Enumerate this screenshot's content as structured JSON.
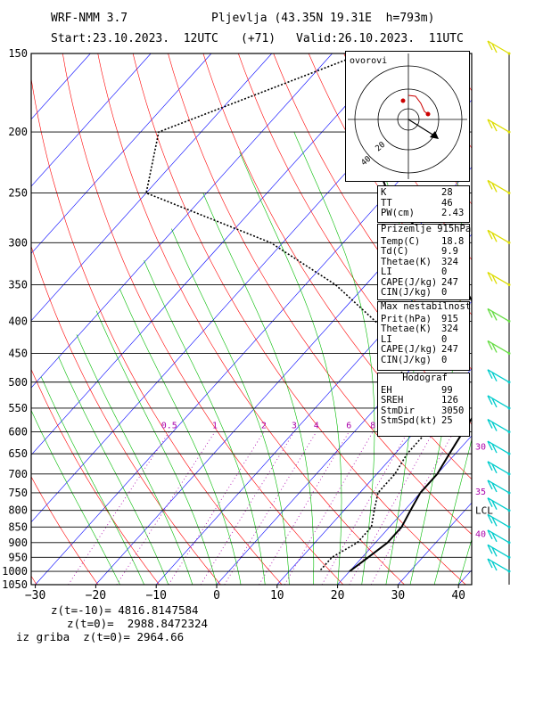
{
  "header": {
    "model": "WRF-NMM 3.7",
    "station": "Pljevlja (43.35N 19.31E  h=793m)",
    "start": "Start:23.10.2023.  12UTC",
    "lead": "(+71)",
    "valid": "Valid:26.10.2023.  11UTC"
  },
  "indices": [
    {
      "key": "K",
      "value": "28"
    },
    {
      "key": "TT",
      "value": "46"
    },
    {
      "key": "PW(cm)",
      "value": "2.43"
    }
  ],
  "surface": {
    "title": "Prizemlje 915hPa",
    "rows": [
      {
        "key": "Temp(C)",
        "value": "18.8"
      },
      {
        "key": "Td(C)",
        "value": "9.9"
      },
      {
        "key": "Thetae(K)",
        "value": "324"
      },
      {
        "key": "LI",
        "value": "0"
      },
      {
        "key": "CAPE(J/kg)",
        "value": "247"
      },
      {
        "key": "CIN(J/kg)",
        "value": "0"
      }
    ]
  },
  "maxinst": {
    "title": "Max nestabilnost",
    "rows": [
      {
        "key": "Prit(hPa)",
        "value": "915"
      },
      {
        "key": "Thetae(K)",
        "value": "324"
      },
      {
        "key": "LI",
        "value": "0"
      },
      {
        "key": "CAPE(J/kg)",
        "value": "247"
      },
      {
        "key": "CIN(J/kg)",
        "value": "0"
      }
    ]
  },
  "hodograf": {
    "title": "Hodograf",
    "rows": [
      {
        "key": "EH",
        "value": "99"
      },
      {
        "key": "SREH",
        "value": "126"
      },
      {
        "key": "StmDir",
        "value": "3050"
      },
      {
        "key": "StmSpd(kt)",
        "value": "25"
      }
    ]
  },
  "hodograph_plot": {
    "title": "ovorovi",
    "ring_labels": [
      "20",
      "40"
    ]
  },
  "footer": {
    "line1": "z(t=-10)= 4816.8147584",
    "line2": "z(t=0)=  2988.8472324",
    "line3": "iz griba  z(t=0)= 2964.66"
  },
  "chart_data": {
    "type": "skew-t",
    "x_tick_labels": [
      "-30",
      "-20",
      "-10",
      "0",
      "10",
      "20",
      "30",
      "40"
    ],
    "x_ticks": [
      -30,
      -20,
      -10,
      0,
      10,
      20,
      30,
      40
    ],
    "xlim": [
      -30,
      42
    ],
    "y_tick_labels": [
      "150",
      "200",
      "250",
      "300",
      "350",
      "400",
      "450",
      "500",
      "550",
      "600",
      "650",
      "700",
      "750",
      "800",
      "850",
      "900",
      "950",
      "1000",
      "1050"
    ],
    "y_ticks": [
      150,
      200,
      250,
      300,
      350,
      400,
      450,
      500,
      550,
      600,
      650,
      700,
      750,
      800,
      850,
      900,
      950,
      1000,
      1050
    ],
    "ylim": [
      150,
      1050
    ],
    "y_scale": "log",
    "mixing_ratio_labels": [
      "0.5",
      "1",
      "2",
      "3",
      "4",
      "6",
      "8"
    ],
    "right_labels": [
      {
        "text": "30",
        "p": 632
      },
      {
        "text": "35",
        "p": 745
      },
      {
        "text": "LCL",
        "p": 800
      },
      {
        "text": "40",
        "p": 870
      }
    ],
    "temperature": [
      {
        "p": 150,
        "t": -39
      },
      {
        "p": 200,
        "t": -43
      },
      {
        "p": 250,
        "t": -30
      },
      {
        "p": 300,
        "t": -16
      },
      {
        "p": 350,
        "t": -4
      },
      {
        "p": 400,
        "t": 5
      },
      {
        "p": 450,
        "t": 11
      },
      {
        "p": 500,
        "t": 16
      },
      {
        "p": 550,
        "t": 17
      },
      {
        "p": 600,
        "t": 18
      },
      {
        "p": 650,
        "t": 19
      },
      {
        "p": 700,
        "t": 20
      },
      {
        "p": 750,
        "t": 20
      },
      {
        "p": 800,
        "t": 21
      },
      {
        "p": 850,
        "t": 22
      },
      {
        "p": 900,
        "t": 22
      },
      {
        "p": 950,
        "t": 21
      },
      {
        "p": 1000,
        "t": 20
      }
    ],
    "dewpoint": [
      {
        "p": 150,
        "t": -55
      },
      {
        "p": 200,
        "t": -77
      },
      {
        "p": 250,
        "t": -70
      },
      {
        "p": 300,
        "t": -42
      },
      {
        "p": 350,
        "t": -25
      },
      {
        "p": 400,
        "t": -13
      },
      {
        "p": 450,
        "t": -3
      },
      {
        "p": 500,
        "t": 0
      },
      {
        "p": 550,
        "t": 3
      },
      {
        "p": 600,
        "t": 12
      },
      {
        "p": 650,
        "t": 12
      },
      {
        "p": 700,
        "t": 13
      },
      {
        "p": 750,
        "t": 13
      },
      {
        "p": 800,
        "t": 15
      },
      {
        "p": 850,
        "t": 17
      },
      {
        "p": 900,
        "t": 17
      },
      {
        "p": 950,
        "t": 15
      },
      {
        "p": 1000,
        "t": 15
      }
    ],
    "colors": {
      "temperature": "#000000",
      "isotherms": "#0000ff",
      "dry_adiabats": "#ff0000",
      "moist_adiabats": "#00bb00",
      "mixing_ratio": "#aa00aa",
      "barbs_upper": "#dddd00",
      "barbs_mid": "#66dd44",
      "barbs_low": "#00cccc",
      "hodograph": "#cc0000"
    }
  }
}
